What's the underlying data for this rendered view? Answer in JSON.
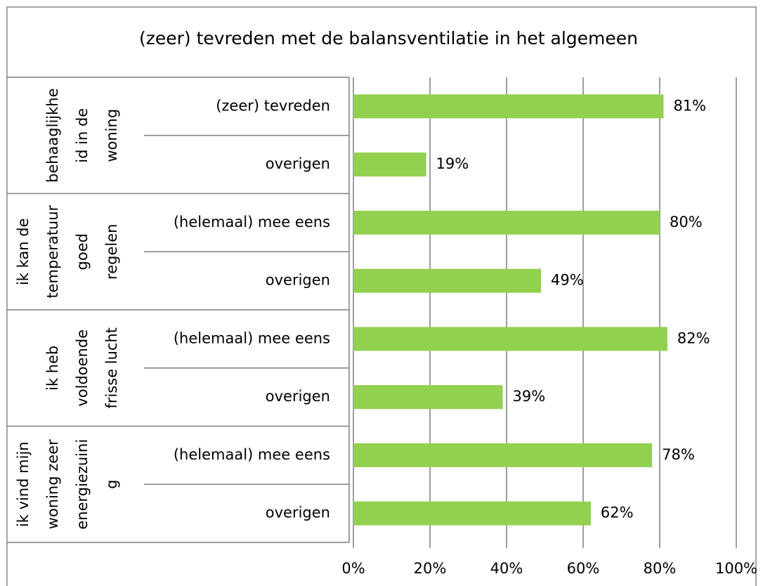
{
  "chart_data": {
    "type": "bar",
    "orientation": "horizontal",
    "title": "(zeer) tevreden met de balansventilatie in het algemeen",
    "group_labels": [
      [
        "behaaglijkhe",
        "id in de",
        "woning"
      ],
      [
        "ik kan de",
        "temperatuur",
        "goed",
        "regelen"
      ],
      [
        "ik heb",
        "voldoende",
        "frisse lucht"
      ],
      [
        "ik vind mijn",
        "woning zeer",
        "energiezuini",
        "g"
      ]
    ],
    "categories": [
      "(zeer) tevreden",
      "overigen",
      "(helemaal) mee eens",
      "overigen",
      "(helemaal) mee eens",
      "overigen",
      "(helemaal) mee eens",
      "overigen"
    ],
    "values": [
      81,
      19,
      80,
      49,
      82,
      39,
      78,
      62
    ],
    "value_labels": [
      "81%",
      "19%",
      "80%",
      "49%",
      "82%",
      "39%",
      "78%",
      "62%"
    ],
    "color": "#92d050",
    "xlim": [
      0,
      100
    ],
    "xticks": [
      {
        "value": 0,
        "label": "0%"
      },
      {
        "value": 20,
        "label": "20%"
      },
      {
        "value": 40,
        "label": "40%"
      },
      {
        "value": 60,
        "label": "60%"
      },
      {
        "value": 80,
        "label": "80%"
      },
      {
        "value": 100,
        "label": "100%"
      }
    ],
    "grid": true
  }
}
